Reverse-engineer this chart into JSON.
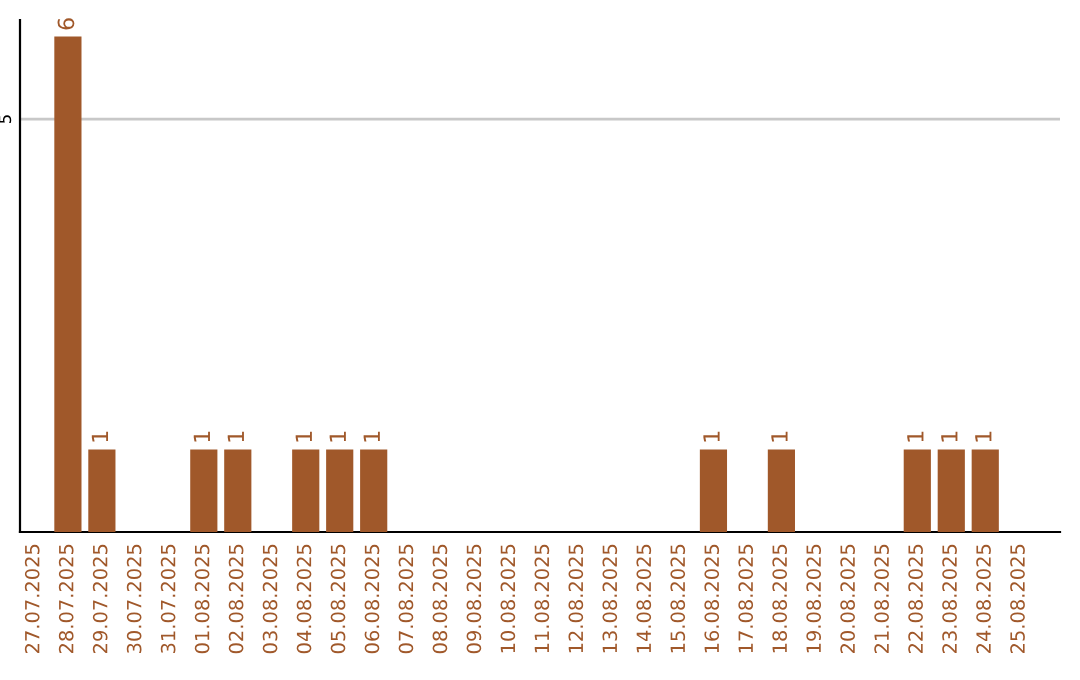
{
  "chart_data": {
    "type": "bar",
    "categories": [
      "27.07.2025",
      "28.07.2025",
      "29.07.2025",
      "30.07.2025",
      "31.07.2025",
      "01.08.2025",
      "02.08.2025",
      "03.08.2025",
      "04.08.2025",
      "05.08.2025",
      "06.08.2025",
      "07.08.2025",
      "08.08.2025",
      "09.08.2025",
      "10.08.2025",
      "11.08.2025",
      "12.08.2025",
      "13.08.2025",
      "14.08.2025",
      "15.08.2025",
      "16.08.2025",
      "17.08.2025",
      "18.08.2025",
      "19.08.2025",
      "20.08.2025",
      "21.08.2025",
      "22.08.2025",
      "23.08.2025",
      "24.08.2025",
      "25.08.2025"
    ],
    "values": [
      0,
      6,
      1,
      0,
      0,
      1,
      1,
      0,
      1,
      1,
      1,
      0,
      0,
      0,
      0,
      0,
      0,
      0,
      0,
      0,
      1,
      0,
      1,
      0,
      0,
      0,
      1,
      1,
      1,
      0
    ],
    "value_labels": [
      null,
      "6",
      "1",
      null,
      null,
      "1",
      "1",
      null,
      "1",
      "1",
      "1",
      null,
      null,
      null,
      null,
      null,
      null,
      null,
      null,
      null,
      "1",
      null,
      "1",
      null,
      null,
      null,
      "1",
      "1",
      "1",
      null
    ],
    "color": "#a0582a",
    "ylim": [
      0,
      6.2
    ],
    "yticks": [
      5
    ],
    "grid": "y"
  }
}
